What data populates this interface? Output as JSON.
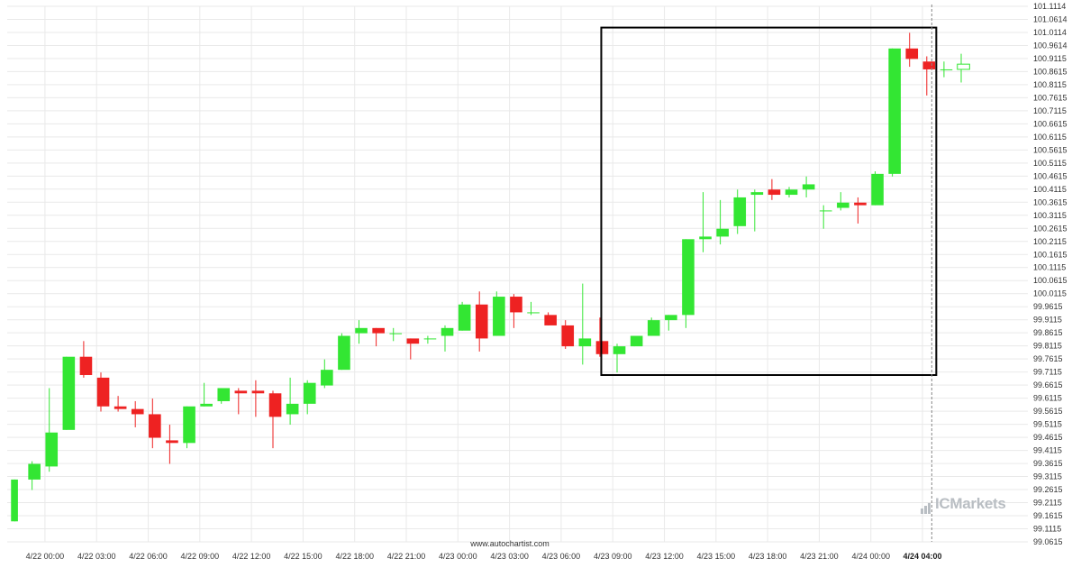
{
  "watermark": "www.autochartist.com",
  "brand": {
    "prefix": "IC",
    "name": "Markets"
  },
  "colors": {
    "up": "#33e633",
    "down": "#ee2222",
    "box": "#000000",
    "grid": "#e9e9e9",
    "cursor": "#888888"
  },
  "chart_data": {
    "type": "candlestick",
    "title": "",
    "xlabel": "",
    "ylabel": "",
    "ylim": [
      99.0615,
      101.1114
    ],
    "grid": true,
    "y_ticks": [
      "101.1114",
      "101.0614",
      "101.0114",
      "100.9614",
      "100.9115",
      "100.8615",
      "100.8115",
      "100.7615",
      "100.7115",
      "100.6615",
      "100.6115",
      "100.5615",
      "100.5115",
      "100.4615",
      "100.4115",
      "100.3615",
      "100.3115",
      "100.2615",
      "100.2115",
      "100.1615",
      "100.1115",
      "100.0615",
      "100.0115",
      "99.9615",
      "99.9115",
      "99.8615",
      "99.8115",
      "99.7615",
      "99.7115",
      "99.6615",
      "99.6115",
      "99.5615",
      "99.5115",
      "99.4615",
      "99.4115",
      "99.3615",
      "99.3115",
      "99.2615",
      "99.2115",
      "99.1615",
      "99.1115",
      "99.0615"
    ],
    "x_ticks": [
      {
        "label": "4/22 00:00",
        "index": 1.75
      },
      {
        "label": "4/22 03:00",
        "index": 4.75
      },
      {
        "label": "4/22 06:00",
        "index": 7.75
      },
      {
        "label": "4/22 09:00",
        "index": 10.75
      },
      {
        "label": "4/22 12:00",
        "index": 13.75
      },
      {
        "label": "4/22 15:00",
        "index": 16.75
      },
      {
        "label": "4/22 18:00",
        "index": 19.75
      },
      {
        "label": "4/22 21:00",
        "index": 22.75
      },
      {
        "label": "4/23 00:00",
        "index": 25.75
      },
      {
        "label": "4/23 03:00",
        "index": 28.75
      },
      {
        "label": "4/23 06:00",
        "index": 31.75
      },
      {
        "label": "4/23 09:00",
        "index": 34.75
      },
      {
        "label": "4/23 12:00",
        "index": 37.75
      },
      {
        "label": "4/23 15:00",
        "index": 40.75
      },
      {
        "label": "4/23 18:00",
        "index": 43.75
      },
      {
        "label": "4/23 21:00",
        "index": 46.75
      },
      {
        "label": "4/24 00:00",
        "index": 49.75
      },
      {
        "label": "4/24 04:00",
        "index": 52.75,
        "bold": true
      }
    ],
    "candles": [
      {
        "o": 99.14,
        "h": 99.3,
        "l": 99.14,
        "c": 99.3
      },
      {
        "o": 99.3,
        "h": 99.37,
        "l": 99.26,
        "c": 99.36
      },
      {
        "o": 99.35,
        "h": 99.65,
        "l": 99.33,
        "c": 99.48
      },
      {
        "o": 99.49,
        "h": 99.77,
        "l": 99.49,
        "c": 99.77
      },
      {
        "o": 99.77,
        "h": 99.83,
        "l": 99.69,
        "c": 99.7
      },
      {
        "o": 99.69,
        "h": 99.71,
        "l": 99.56,
        "c": 99.58
      },
      {
        "o": 99.58,
        "h": 99.62,
        "l": 99.56,
        "c": 99.57
      },
      {
        "o": 99.57,
        "h": 99.6,
        "l": 99.5,
        "c": 99.55
      },
      {
        "o": 99.55,
        "h": 99.61,
        "l": 99.42,
        "c": 99.46
      },
      {
        "o": 99.45,
        "h": 99.51,
        "l": 99.36,
        "c": 99.44
      },
      {
        "o": 99.44,
        "h": 99.58,
        "l": 99.42,
        "c": 99.58
      },
      {
        "o": 99.58,
        "h": 99.67,
        "l": 99.58,
        "c": 99.59
      },
      {
        "o": 99.6,
        "h": 99.65,
        "l": 99.59,
        "c": 99.65
      },
      {
        "o": 99.64,
        "h": 99.65,
        "l": 99.55,
        "c": 99.63
      },
      {
        "o": 99.64,
        "h": 99.68,
        "l": 99.54,
        "c": 99.63
      },
      {
        "o": 99.63,
        "h": 99.64,
        "l": 99.42,
        "c": 99.54
      },
      {
        "o": 99.55,
        "h": 99.69,
        "l": 99.51,
        "c": 99.59
      },
      {
        "o": 99.59,
        "h": 99.68,
        "l": 99.55,
        "c": 99.67
      },
      {
        "o": 99.66,
        "h": 99.76,
        "l": 99.65,
        "c": 99.72
      },
      {
        "o": 99.72,
        "h": 99.86,
        "l": 99.72,
        "c": 99.85
      },
      {
        "o": 99.86,
        "h": 99.91,
        "l": 99.82,
        "c": 99.88
      },
      {
        "o": 99.88,
        "h": 99.88,
        "l": 99.81,
        "c": 99.86
      },
      {
        "o": 99.86,
        "h": 99.88,
        "l": 99.83,
        "c": 99.86
      },
      {
        "o": 99.84,
        "h": 99.84,
        "l": 99.76,
        "c": 99.82
      },
      {
        "o": 99.84,
        "h": 99.85,
        "l": 99.82,
        "c": 99.84
      },
      {
        "o": 99.85,
        "h": 99.89,
        "l": 99.79,
        "c": 99.88
      },
      {
        "o": 99.87,
        "h": 99.98,
        "l": 99.87,
        "c": 99.97
      },
      {
        "o": 99.97,
        "h": 100.02,
        "l": 99.79,
        "c": 99.84
      },
      {
        "o": 99.85,
        "h": 100.02,
        "l": 99.85,
        "c": 100.0
      },
      {
        "o": 100.0,
        "h": 100.01,
        "l": 99.88,
        "c": 99.94
      },
      {
        "o": 99.94,
        "h": 99.98,
        "l": 99.93,
        "c": 99.94
      },
      {
        "o": 99.93,
        "h": 99.94,
        "l": 99.89,
        "c": 99.89
      },
      {
        "o": 99.89,
        "h": 99.91,
        "l": 99.8,
        "c": 99.81
      },
      {
        "o": 99.81,
        "h": 100.05,
        "l": 99.74,
        "c": 99.84
      },
      {
        "o": 99.83,
        "h": 99.92,
        "l": 99.77,
        "c": 99.78
      },
      {
        "o": 99.78,
        "h": 99.82,
        "l": 99.71,
        "c": 99.81
      },
      {
        "o": 99.81,
        "h": 99.85,
        "l": 99.81,
        "c": 99.85
      },
      {
        "o": 99.85,
        "h": 99.92,
        "l": 99.85,
        "c": 99.91
      },
      {
        "o": 99.91,
        "h": 99.93,
        "l": 99.87,
        "c": 99.93
      },
      {
        "o": 99.93,
        "h": 100.22,
        "l": 99.88,
        "c": 100.22
      },
      {
        "o": 100.22,
        "h": 100.4,
        "l": 100.17,
        "c": 100.23
      },
      {
        "o": 100.23,
        "h": 100.37,
        "l": 100.2,
        "c": 100.26
      },
      {
        "o": 100.27,
        "h": 100.41,
        "l": 100.24,
        "c": 100.38
      },
      {
        "o": 100.39,
        "h": 100.41,
        "l": 100.25,
        "c": 100.4
      },
      {
        "o": 100.41,
        "h": 100.45,
        "l": 100.37,
        "c": 100.39
      },
      {
        "o": 100.39,
        "h": 100.42,
        "l": 100.38,
        "c": 100.41
      },
      {
        "o": 100.41,
        "h": 100.46,
        "l": 100.38,
        "c": 100.43
      },
      {
        "o": 100.33,
        "h": 100.35,
        "l": 100.26,
        "c": 100.33
      },
      {
        "o": 100.34,
        "h": 100.4,
        "l": 100.33,
        "c": 100.36
      },
      {
        "o": 100.36,
        "h": 100.38,
        "l": 100.28,
        "c": 100.35
      },
      {
        "o": 100.35,
        "h": 100.48,
        "l": 100.35,
        "c": 100.47
      },
      {
        "o": 100.47,
        "h": 100.95,
        "l": 100.46,
        "c": 100.95
      },
      {
        "o": 100.95,
        "h": 101.01,
        "l": 100.88,
        "c": 100.91
      },
      {
        "o": 100.9,
        "h": 100.92,
        "l": 100.77,
        "c": 100.87
      },
      {
        "o": 100.87,
        "h": 100.9,
        "l": 100.84,
        "c": 100.87
      },
      {
        "o": 100.87,
        "h": 100.93,
        "l": 100.82,
        "c": 100.89
      }
    ],
    "hollow_last": true,
    "pattern_box": {
      "from_index": 34.5,
      "to_index": 53.5,
      "y_low": 99.7,
      "y_high": 101.03
    },
    "cursor_index": 53.5
  }
}
